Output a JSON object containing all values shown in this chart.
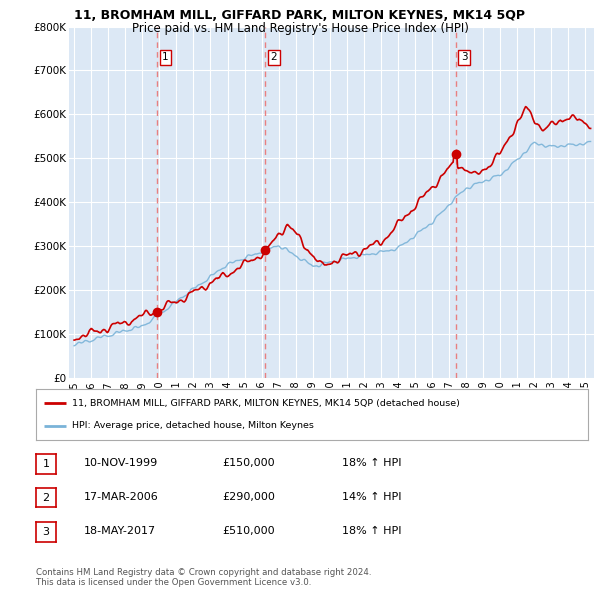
{
  "title": "11, BROMHAM MILL, GIFFARD PARK, MILTON KEYNES, MK14 5QP",
  "subtitle": "Price paid vs. HM Land Registry's House Price Index (HPI)",
  "ylim": [
    0,
    800000
  ],
  "yticks": [
    0,
    100000,
    200000,
    300000,
    400000,
    500000,
    600000,
    700000,
    800000
  ],
  "ytick_labels": [
    "£0",
    "£100K",
    "£200K",
    "£300K",
    "£400K",
    "£500K",
    "£600K",
    "£700K",
    "£800K"
  ],
  "sale_dates": [
    1999.87,
    2006.22,
    2017.38
  ],
  "sale_prices": [
    150000,
    290000,
    510000
  ],
  "sale_labels": [
    "1",
    "2",
    "3"
  ],
  "hpi_color": "#7ab3d8",
  "price_color": "#cc0000",
  "dashed_color": "#e88080",
  "legend_label_price": "11, BROMHAM MILL, GIFFARD PARK, MILTON KEYNES, MK14 5QP (detached house)",
  "legend_label_hpi": "HPI: Average price, detached house, Milton Keynes",
  "table_rows": [
    [
      "1",
      "10-NOV-1999",
      "£150,000",
      "18% ↑ HPI"
    ],
    [
      "2",
      "17-MAR-2006",
      "£290,000",
      "14% ↑ HPI"
    ],
    [
      "3",
      "18-MAY-2017",
      "£510,000",
      "18% ↑ HPI"
    ]
  ],
  "footnote": "Contains HM Land Registry data © Crown copyright and database right 2024.\nThis data is licensed under the Open Government Licence v3.0.",
  "bg_color": "#dce8f5",
  "grid_color": "#ffffff",
  "xlim_start": 1994.7,
  "xlim_end": 2025.5,
  "xtick_years": [
    1995,
    1996,
    1997,
    1998,
    1999,
    2000,
    2001,
    2002,
    2003,
    2004,
    2005,
    2006,
    2007,
    2008,
    2009,
    2010,
    2011,
    2012,
    2013,
    2014,
    2015,
    2016,
    2017,
    2018,
    2019,
    2020,
    2021,
    2022,
    2023,
    2024,
    2025
  ]
}
